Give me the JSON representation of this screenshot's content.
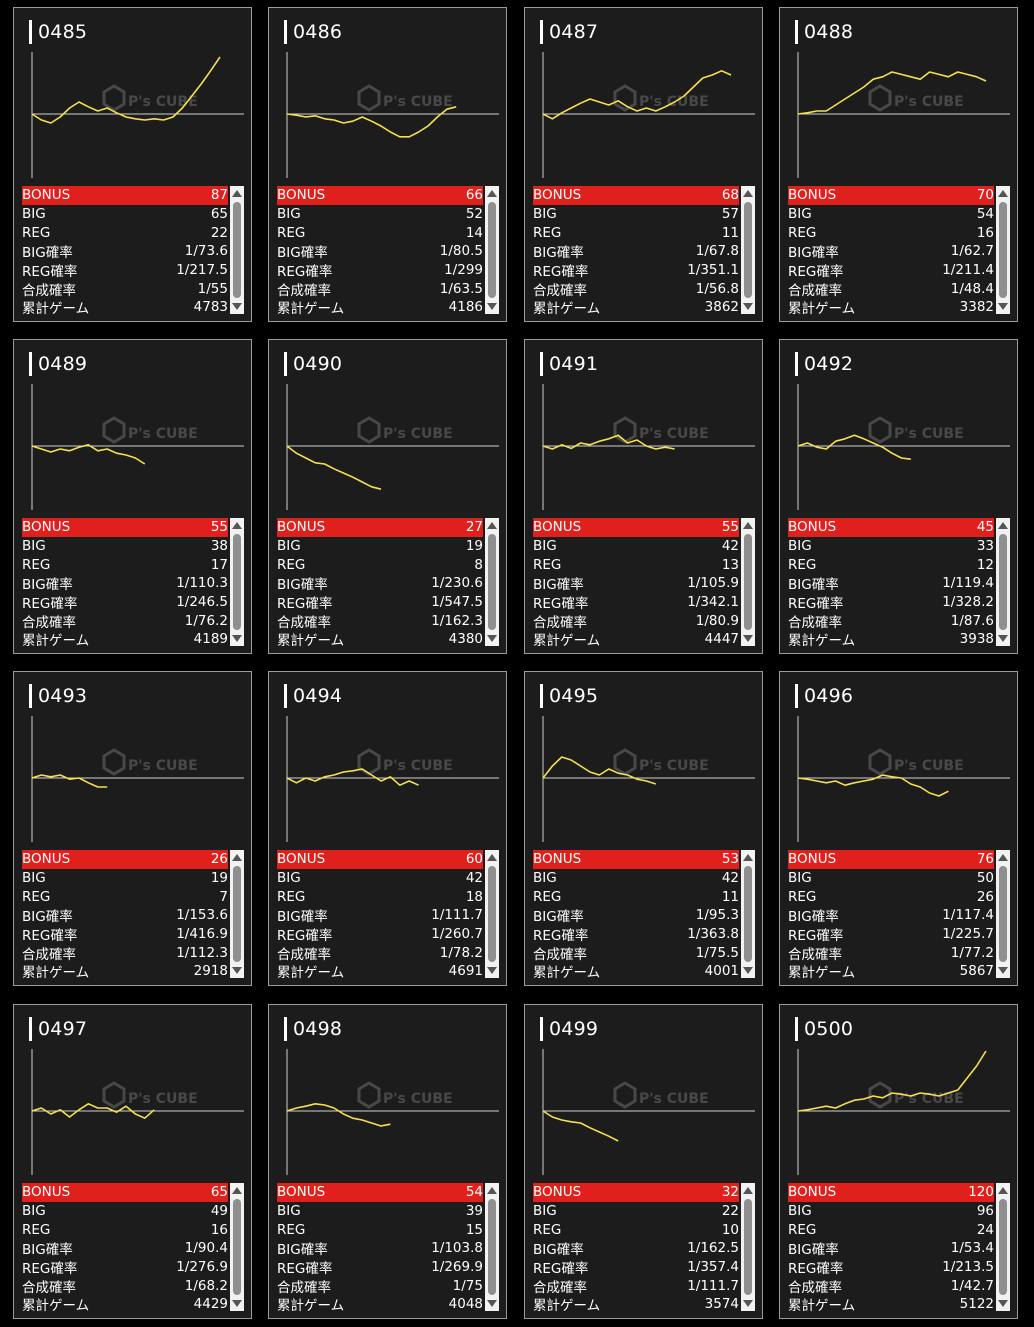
{
  "labels": {
    "bonus": "BONUS",
    "big": "BIG",
    "reg": "REG",
    "big_rate": "BIG確率",
    "reg_rate": "REG確率",
    "comb_rate": "合成確率",
    "games": "累計ゲーム"
  },
  "colors": {
    "line": "#f5e050",
    "bonus_row": "#e0201c",
    "panel": "#1c1c1c"
  },
  "watermark": "P's CUBE",
  "machines": [
    {
      "no": "0485",
      "bonus": "87",
      "big": "65",
      "reg": "22",
      "big_rate": "1/73.6",
      "reg_rate": "1/217.5",
      "comb_rate": "1/55",
      "games": "4783"
    },
    {
      "no": "0486",
      "bonus": "66",
      "big": "52",
      "reg": "14",
      "big_rate": "1/80.5",
      "reg_rate": "1/299",
      "comb_rate": "1/63.5",
      "games": "4186"
    },
    {
      "no": "0487",
      "bonus": "68",
      "big": "57",
      "reg": "11",
      "big_rate": "1/67.8",
      "reg_rate": "1/351.1",
      "comb_rate": "1/56.8",
      "games": "3862"
    },
    {
      "no": "0488",
      "bonus": "70",
      "big": "54",
      "reg": "16",
      "big_rate": "1/62.7",
      "reg_rate": "1/211.4",
      "comb_rate": "1/48.4",
      "games": "3382"
    },
    {
      "no": "0489",
      "bonus": "55",
      "big": "38",
      "reg": "17",
      "big_rate": "1/110.3",
      "reg_rate": "1/246.5",
      "comb_rate": "1/76.2",
      "games": "4189"
    },
    {
      "no": "0490",
      "bonus": "27",
      "big": "19",
      "reg": "8",
      "big_rate": "1/230.6",
      "reg_rate": "1/547.5",
      "comb_rate": "1/162.3",
      "games": "4380"
    },
    {
      "no": "0491",
      "bonus": "55",
      "big": "42",
      "reg": "13",
      "big_rate": "1/105.9",
      "reg_rate": "1/342.1",
      "comb_rate": "1/80.9",
      "games": "4447"
    },
    {
      "no": "0492",
      "bonus": "45",
      "big": "33",
      "reg": "12",
      "big_rate": "1/119.4",
      "reg_rate": "1/328.2",
      "comb_rate": "1/87.6",
      "games": "3938"
    },
    {
      "no": "0493",
      "bonus": "26",
      "big": "19",
      "reg": "7",
      "big_rate": "1/153.6",
      "reg_rate": "1/416.9",
      "comb_rate": "1/112.3",
      "games": "2918"
    },
    {
      "no": "0494",
      "bonus": "60",
      "big": "42",
      "reg": "18",
      "big_rate": "1/111.7",
      "reg_rate": "1/260.7",
      "comb_rate": "1/78.2",
      "games": "4691"
    },
    {
      "no": "0495",
      "bonus": "53",
      "big": "42",
      "reg": "11",
      "big_rate": "1/95.3",
      "reg_rate": "1/363.8",
      "comb_rate": "1/75.5",
      "games": "4001"
    },
    {
      "no": "0496",
      "bonus": "76",
      "big": "50",
      "reg": "26",
      "big_rate": "1/117.4",
      "reg_rate": "1/225.7",
      "comb_rate": "1/77.2",
      "games": "5867"
    },
    {
      "no": "0497",
      "bonus": "65",
      "big": "49",
      "reg": "16",
      "big_rate": "1/90.4",
      "reg_rate": "1/276.9",
      "comb_rate": "1/68.2",
      "games": "4429"
    },
    {
      "no": "0498",
      "bonus": "54",
      "big": "39",
      "reg": "15",
      "big_rate": "1/103.8",
      "reg_rate": "1/269.9",
      "comb_rate": "1/75",
      "games": "4048"
    },
    {
      "no": "0499",
      "bonus": "32",
      "big": "22",
      "reg": "10",
      "big_rate": "1/162.5",
      "reg_rate": "1/357.4",
      "comb_rate": "1/111.7",
      "games": "3574"
    },
    {
      "no": "0500",
      "bonus": "120",
      "big": "96",
      "reg": "24",
      "big_rate": "1/53.4",
      "reg_rate": "1/213.5",
      "comb_rate": "1/42.7",
      "games": "5122"
    }
  ],
  "chart_data": {
    "type": "line",
    "y_zero_line": true,
    "x_range": [
      0,
      100
    ],
    "y_range": [
      -1,
      1
    ],
    "series": [
      {
        "x": [
          0,
          5,
          10,
          15,
          20,
          25,
          30,
          35,
          40,
          45,
          50,
          55,
          60,
          65,
          70,
          75,
          80,
          85,
          90,
          95,
          100
        ],
        "y": [
          0,
          -0.1,
          -0.15,
          -0.05,
          0.1,
          0.2,
          0.12,
          0.05,
          0.1,
          0.02,
          -0.05,
          -0.08,
          -0.1,
          -0.08,
          -0.1,
          -0.05,
          0.1,
          0.3,
          0.5,
          0.72,
          0.95
        ]
      },
      {
        "x": [
          0,
          5,
          10,
          15,
          20,
          25,
          30,
          35,
          40,
          45,
          50,
          55,
          60,
          65,
          70,
          75,
          80,
          85,
          90
        ],
        "y": [
          0,
          -0.02,
          -0.05,
          -0.03,
          -0.08,
          -0.1,
          -0.15,
          -0.12,
          -0.05,
          -0.12,
          -0.2,
          -0.3,
          -0.38,
          -0.38,
          -0.3,
          -0.2,
          -0.05,
          0.08,
          0.12
        ]
      },
      {
        "x": [
          0,
          5,
          10,
          15,
          20,
          25,
          30,
          35,
          40,
          45,
          50,
          55,
          60,
          65,
          70,
          75,
          80,
          85,
          90,
          95,
          100
        ],
        "y": [
          0,
          -0.08,
          0.02,
          0.1,
          0.18,
          0.25,
          0.2,
          0.15,
          0.22,
          0.12,
          0.05,
          0.1,
          0.05,
          0.12,
          0.2,
          0.3,
          0.45,
          0.6,
          0.65,
          0.72,
          0.65
        ]
      },
      {
        "x": [
          0,
          5,
          10,
          15,
          20,
          25,
          30,
          35,
          40,
          45,
          50,
          55,
          60,
          65,
          70,
          75,
          80,
          85,
          90,
          95,
          100
        ],
        "y": [
          0,
          0.02,
          0.05,
          0.05,
          0.15,
          0.25,
          0.35,
          0.45,
          0.58,
          0.62,
          0.7,
          0.66,
          0.62,
          0.58,
          0.7,
          0.66,
          0.62,
          0.7,
          0.66,
          0.62,
          0.55
        ]
      },
      {
        "x": [
          0,
          5,
          10,
          15,
          20,
          25,
          30,
          35,
          40,
          45,
          50,
          55,
          60
        ],
        "y": [
          0,
          -0.05,
          -0.1,
          -0.05,
          -0.08,
          -0.02,
          0.02,
          -0.08,
          -0.05,
          -0.12,
          -0.15,
          -0.2,
          -0.3
        ]
      },
      {
        "x": [
          0,
          5,
          10,
          15,
          20,
          25,
          30,
          35,
          40,
          45,
          50
        ],
        "y": [
          0,
          -0.12,
          -0.2,
          -0.28,
          -0.3,
          -0.38,
          -0.45,
          -0.52,
          -0.6,
          -0.68,
          -0.72
        ]
      },
      {
        "x": [
          0,
          5,
          10,
          15,
          20,
          25,
          30,
          35,
          40,
          45,
          50,
          55,
          60,
          65,
          70
        ],
        "y": [
          0,
          -0.05,
          0.02,
          -0.04,
          0.05,
          0.02,
          0.08,
          0.12,
          0.18,
          0.05,
          0.1,
          0.0,
          -0.05,
          -0.02,
          -0.05
        ]
      },
      {
        "x": [
          0,
          5,
          10,
          15,
          20,
          25,
          30,
          35,
          40,
          45,
          50,
          55,
          60
        ],
        "y": [
          0,
          0.05,
          -0.02,
          -0.05,
          0.08,
          0.12,
          0.18,
          0.12,
          0.05,
          -0.02,
          -0.12,
          -0.2,
          -0.22
        ]
      },
      {
        "x": [
          0,
          5,
          10,
          15,
          20,
          25,
          30,
          35,
          40
        ],
        "y": [
          0,
          0.05,
          0.02,
          0.05,
          -0.02,
          0.0,
          -0.08,
          -0.15,
          -0.15
        ]
      },
      {
        "x": [
          0,
          5,
          10,
          15,
          20,
          25,
          30,
          35,
          40,
          45,
          50,
          55,
          60,
          65,
          70
        ],
        "y": [
          0,
          -0.08,
          0.0,
          -0.05,
          0.02,
          0.05,
          0.1,
          0.12,
          0.15,
          0.05,
          -0.05,
          0.02,
          -0.12,
          -0.05,
          -0.12
        ]
      },
      {
        "x": [
          0,
          5,
          10,
          15,
          20,
          25,
          30,
          35,
          40,
          45,
          50,
          55,
          60
        ],
        "y": [
          0,
          0.2,
          0.35,
          0.3,
          0.2,
          0.1,
          0.05,
          0.15,
          0.08,
          0.05,
          -0.02,
          -0.05,
          -0.1
        ]
      },
      {
        "x": [
          0,
          5,
          10,
          15,
          20,
          25,
          30,
          35,
          40,
          45,
          50,
          55,
          60,
          65,
          70,
          75,
          80
        ],
        "y": [
          0,
          -0.02,
          -0.05,
          -0.08,
          -0.05,
          -0.12,
          -0.08,
          -0.05,
          -0.02,
          0.05,
          0.02,
          0.0,
          -0.1,
          -0.15,
          -0.25,
          -0.3,
          -0.22
        ]
      },
      {
        "x": [
          0,
          5,
          10,
          15,
          20,
          25,
          30,
          35,
          40,
          45,
          50,
          55,
          60,
          65
        ],
        "y": [
          0,
          0.05,
          -0.05,
          0.02,
          -0.1,
          0.02,
          0.12,
          0.05,
          0.05,
          -0.02,
          0.08,
          -0.05,
          -0.12,
          0.02
        ]
      },
      {
        "x": [
          0,
          5,
          10,
          15,
          20,
          25,
          30,
          35,
          40,
          45,
          50,
          55
        ],
        "y": [
          0,
          0.05,
          0.08,
          0.12,
          0.1,
          0.05,
          -0.05,
          -0.12,
          -0.15,
          -0.2,
          -0.25,
          -0.22
        ]
      },
      {
        "x": [
          0,
          5,
          10,
          15,
          20,
          25,
          30,
          35,
          40
        ],
        "y": [
          0,
          -0.1,
          -0.15,
          -0.18,
          -0.2,
          -0.28,
          -0.35,
          -0.42,
          -0.5
        ]
      },
      {
        "x": [
          0,
          5,
          10,
          15,
          20,
          25,
          30,
          35,
          40,
          45,
          50,
          55,
          60,
          65,
          70,
          75,
          80,
          85,
          90,
          95,
          100
        ],
        "y": [
          0,
          0.02,
          0.05,
          0.08,
          0.05,
          0.12,
          0.18,
          0.2,
          0.25,
          0.22,
          0.3,
          0.28,
          0.25,
          0.3,
          0.28,
          0.25,
          0.3,
          0.35,
          0.55,
          0.75,
          1.0
        ]
      }
    ]
  }
}
